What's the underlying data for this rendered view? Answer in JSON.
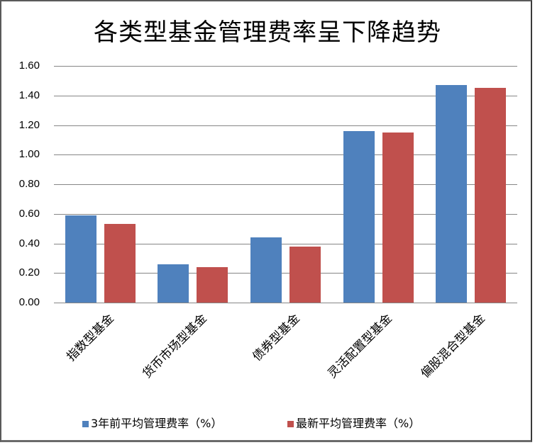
{
  "chart_data": {
    "type": "bar",
    "title": "各类型基金管理费率呈下降趋势",
    "xlabel": "",
    "ylabel": "",
    "ylim": [
      0,
      1.6
    ],
    "yticks": [
      "0.00",
      "0.20",
      "0.40",
      "0.60",
      "0.80",
      "1.00",
      "1.20",
      "1.40",
      "1.60"
    ],
    "grid": true,
    "legend_position": "bottom",
    "categories": [
      "指数型基金",
      "货币市场型基金",
      "债券型基金",
      "灵活配置型基金",
      "偏股混合型基金"
    ],
    "series": [
      {
        "name": "3年前平均管理费率（%）",
        "color": "#4f81bd",
        "values": [
          0.59,
          0.26,
          0.44,
          1.16,
          1.47
        ]
      },
      {
        "name": "最新平均管理费率（%）",
        "color": "#c0504d",
        "values": [
          0.53,
          0.24,
          0.38,
          1.15,
          1.45
        ]
      }
    ]
  }
}
